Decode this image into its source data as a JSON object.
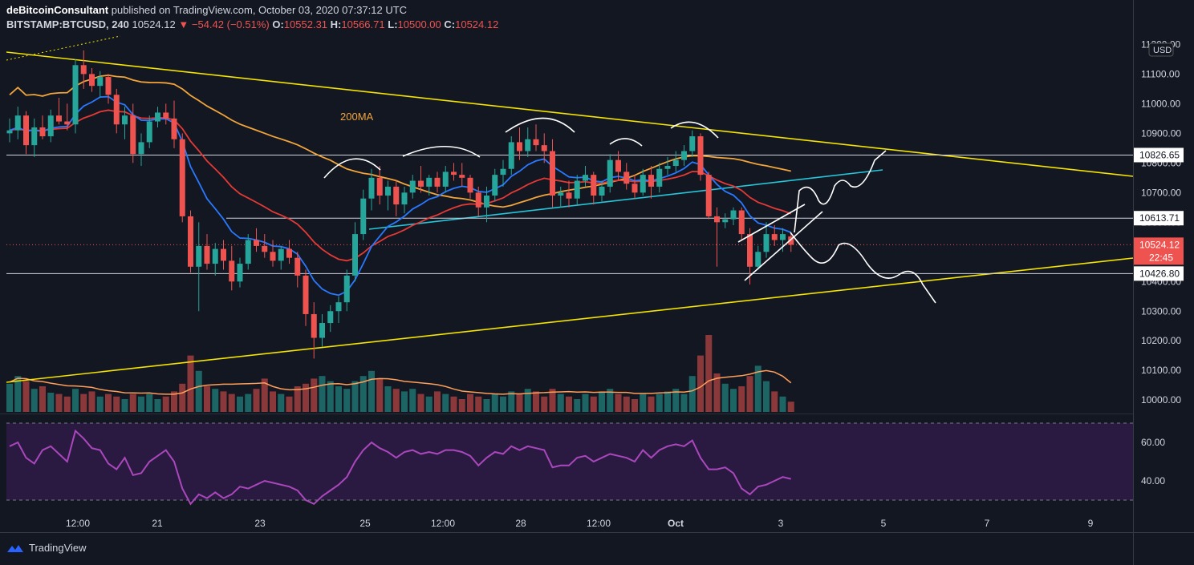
{
  "header": {
    "author": "deBitcoinConsultant",
    "published": "published on TradingView.com, October 03, 2020 07:37:12 UTC",
    "symbol": "BITSTAMP:BTCUSD, 240",
    "last": "10524.12",
    "change": "−54.42 (−0.51%)",
    "o_label": "O:",
    "o": "10552.31",
    "h_label": "H:",
    "h": "10566.71",
    "l_label": "L:",
    "l": "10500.00",
    "c_label": "C:",
    "c": "10524.12"
  },
  "footer": {
    "brand": "TradingView"
  },
  "colors": {
    "bg": "#131722",
    "up": "#26a69a",
    "down": "#ef5350",
    "yellow": "#f5e400",
    "ma200": "#f2a53a",
    "ema_red": "#e53935",
    "ema_blue": "#2979ff",
    "cyan": "#26c6da",
    "rsi": "#ab47bc",
    "rsi_band": "#2a1a42",
    "vol_ma": "#ff9f59"
  },
  "chart_data": {
    "type": "candlestick",
    "currency": "USD",
    "annotation": "200MA",
    "price_axis_ticks": [
      11200,
      11100,
      11000,
      10900,
      10800,
      10700,
      10600,
      10500,
      10400,
      10300,
      10200,
      10100,
      10000
    ],
    "price_axis_tick_labels": [
      "11200.00",
      "11100.00",
      "11000.00",
      "10900.00",
      "10800.00",
      "10700.00",
      "10600.00",
      "10500.00",
      "10400.00",
      "10300.00",
      "10200.00",
      "10100.00",
      "10000.00"
    ],
    "horizontal_levels": [
      10826.65,
      10613.71,
      10426.8
    ],
    "horizontal_level_labels": [
      "10826.65",
      "10613.71",
      "10426.80"
    ],
    "last_price": 10524.12,
    "last_price_label": "10524.12",
    "countdown": "22:45",
    "x_tick_labels": [
      "12:00",
      "21",
      "23",
      "25",
      "12:00",
      "28",
      "12:00",
      "Oct",
      "3",
      "5",
      "7",
      "9"
    ],
    "ylim": [
      9960,
      11220
    ],
    "candles": [
      [
        10900,
        10950,
        10870,
        10910
      ],
      [
        10910,
        10990,
        10880,
        10960
      ],
      [
        10960,
        10975,
        10830,
        10860
      ],
      [
        10860,
        10950,
        10820,
        10920
      ],
      [
        10920,
        10960,
        10880,
        10890
      ],
      [
        10890,
        10980,
        10870,
        10960
      ],
      [
        10960,
        11020,
        10930,
        10940
      ],
      [
        10940,
        11000,
        10910,
        10930
      ],
      [
        10930,
        11150,
        10900,
        11130
      ],
      [
        11130,
        11180,
        11050,
        11100
      ],
      [
        11100,
        11120,
        11040,
        11060
      ],
      [
        11060,
        11110,
        11020,
        11090
      ],
      [
        11090,
        11100,
        11000,
        11030
      ],
      [
        11030,
        11050,
        10900,
        10930
      ],
      [
        10930,
        10990,
        10880,
        10960
      ],
      [
        10960,
        11000,
        10800,
        10830
      ],
      [
        10830,
        10900,
        10790,
        10870
      ],
      [
        10870,
        10960,
        10850,
        10940
      ],
      [
        10940,
        10990,
        10920,
        10970
      ],
      [
        10970,
        11000,
        10930,
        10950
      ],
      [
        10950,
        11010,
        10850,
        10880
      ],
      [
        10880,
        10900,
        10600,
        10620
      ],
      [
        10620,
        10640,
        10430,
        10450
      ],
      [
        10450,
        10600,
        10300,
        10520
      ],
      [
        10520,
        10560,
        10440,
        10460
      ],
      [
        10460,
        10530,
        10420,
        10510
      ],
      [
        10510,
        10540,
        10440,
        10470
      ],
      [
        10470,
        10520,
        10370,
        10400
      ],
      [
        10400,
        10480,
        10380,
        10460
      ],
      [
        10460,
        10560,
        10440,
        10540
      ],
      [
        10540,
        10580,
        10500,
        10520
      ],
      [
        10520,
        10560,
        10480,
        10500
      ],
      [
        10500,
        10540,
        10450,
        10470
      ],
      [
        10470,
        10520,
        10440,
        10510
      ],
      [
        10510,
        10540,
        10460,
        10480
      ],
      [
        10480,
        10500,
        10380,
        10420
      ],
      [
        10420,
        10440,
        10250,
        10290
      ],
      [
        10290,
        10330,
        10140,
        10210
      ],
      [
        10210,
        10290,
        10180,
        10260
      ],
      [
        10260,
        10320,
        10230,
        10300
      ],
      [
        10300,
        10350,
        10260,
        10330
      ],
      [
        10330,
        10440,
        10300,
        10420
      ],
      [
        10420,
        10600,
        10400,
        10560
      ],
      [
        10560,
        10710,
        10540,
        10680
      ],
      [
        10680,
        10780,
        10640,
        10750
      ],
      [
        10750,
        10790,
        10660,
        10690
      ],
      [
        10690,
        10740,
        10640,
        10720
      ],
      [
        10720,
        10740,
        10620,
        10660
      ],
      [
        10660,
        10720,
        10630,
        10700
      ],
      [
        10700,
        10760,
        10680,
        10740
      ],
      [
        10740,
        10790,
        10700,
        10720
      ],
      [
        10720,
        10760,
        10690,
        10750
      ],
      [
        10750,
        10770,
        10700,
        10720
      ],
      [
        10720,
        10790,
        10700,
        10770
      ],
      [
        10770,
        10800,
        10740,
        10760
      ],
      [
        10760,
        10800,
        10720,
        10750
      ],
      [
        10750,
        10760,
        10680,
        10700
      ],
      [
        10700,
        10720,
        10620,
        10650
      ],
      [
        10650,
        10720,
        10600,
        10690
      ],
      [
        10690,
        10780,
        10670,
        10760
      ],
      [
        10760,
        10810,
        10720,
        10780
      ],
      [
        10780,
        10890,
        10760,
        10870
      ],
      [
        10870,
        10920,
        10810,
        10840
      ],
      [
        10840,
        10920,
        10820,
        10880
      ],
      [
        10880,
        10930,
        10840,
        10860
      ],
      [
        10860,
        10900,
        10800,
        10840
      ],
      [
        10840,
        10880,
        10650,
        10690
      ],
      [
        10690,
        10720,
        10650,
        10700
      ],
      [
        10700,
        10740,
        10650,
        10680
      ],
      [
        10680,
        10760,
        10660,
        10740
      ],
      [
        10740,
        10790,
        10720,
        10760
      ],
      [
        10760,
        10770,
        10660,
        10690
      ],
      [
        10690,
        10740,
        10670,
        10720
      ],
      [
        10720,
        10830,
        10700,
        10810
      ],
      [
        10810,
        10840,
        10740,
        10770
      ],
      [
        10770,
        10800,
        10710,
        10730
      ],
      [
        10730,
        10760,
        10680,
        10700
      ],
      [
        10700,
        10780,
        10690,
        10760
      ],
      [
        10760,
        10790,
        10680,
        10720
      ],
      [
        10720,
        10800,
        10700,
        10780
      ],
      [
        10780,
        10820,
        10760,
        10790
      ],
      [
        10790,
        10840,
        10770,
        10810
      ],
      [
        10810,
        10860,
        10790,
        10840
      ],
      [
        10840,
        10910,
        10820,
        10890
      ],
      [
        10890,
        10900,
        10740,
        10760
      ],
      [
        10760,
        10770,
        10610,
        10620
      ],
      [
        10620,
        10650,
        10450,
        10600
      ],
      [
        10600,
        10630,
        10580,
        10610
      ],
      [
        10610,
        10650,
        10590,
        10640
      ],
      [
        10640,
        10650,
        10540,
        10560
      ],
      [
        10560,
        10580,
        10390,
        10450
      ],
      [
        10450,
        10520,
        10440,
        10500
      ],
      [
        10500,
        10600,
        10480,
        10560
      ],
      [
        10560,
        10590,
        10520,
        10540
      ],
      [
        10540,
        10580,
        10500,
        10560
      ],
      [
        10552,
        10567,
        10500,
        10524
      ]
    ],
    "rsi_ticks": [
      60,
      40
    ],
    "rsi_tick_labels": [
      "60.00",
      "40.00"
    ],
    "rsi_bands": [
      70,
      30
    ],
    "rsi": [
      58,
      60,
      52,
      49,
      56,
      58,
      54,
      50,
      66,
      62,
      57,
      56,
      49,
      46,
      52,
      43,
      44,
      50,
      53,
      56,
      50,
      36,
      28,
      33,
      31,
      34,
      31,
      33,
      37,
      36,
      38,
      40,
      39,
      38,
      37,
      35,
      30,
      28,
      32,
      35,
      38,
      42,
      50,
      56,
      60,
      57,
      55,
      52,
      55,
      56,
      54,
      55,
      54,
      56,
      56,
      55,
      53,
      48,
      52,
      55,
      54,
      58,
      56,
      58,
      57,
      56,
      47,
      48,
      48,
      52,
      53,
      50,
      52,
      54,
      53,
      52,
      50,
      56,
      52,
      56,
      58,
      59,
      58,
      61,
      52,
      46,
      46,
      47,
      44,
      36,
      33,
      37,
      38,
      40,
      42,
      41
    ],
    "volume": [
      22,
      28,
      24,
      18,
      20,
      15,
      14,
      12,
      18,
      14,
      16,
      12,
      14,
      12,
      10,
      14,
      12,
      14,
      10,
      12,
      16,
      22,
      44,
      32,
      20,
      18,
      16,
      14,
      12,
      14,
      18,
      26,
      16,
      14,
      12,
      20,
      22,
      26,
      28,
      24,
      20,
      18,
      24,
      28,
      32,
      26,
      20,
      18,
      16,
      18,
      14,
      12,
      16,
      14,
      12,
      10,
      14,
      12,
      10,
      14,
      12,
      16,
      14,
      18,
      16,
      12,
      18,
      14,
      12,
      10,
      14,
      12,
      16,
      18,
      14,
      12,
      10,
      14,
      12,
      14,
      16,
      18,
      14,
      28,
      44,
      60,
      30,
      22,
      18,
      20,
      28,
      36,
      24,
      16,
      12,
      8
    ]
  }
}
